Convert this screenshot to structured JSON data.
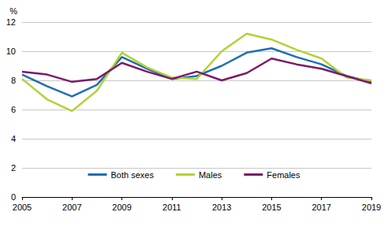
{
  "chart_data": {
    "type": "line",
    "y_label": "%",
    "x": [
      2005,
      2006,
      2007,
      2008,
      2009,
      2010,
      2011,
      2012,
      2013,
      2014,
      2015,
      2016,
      2017,
      2018,
      2019
    ],
    "series": [
      {
        "name": "Both sexes",
        "color": "#1f6eb3",
        "values": [
          8.4,
          7.6,
          6.9,
          7.7,
          9.6,
          8.8,
          8.1,
          8.3,
          9.0,
          9.9,
          10.2,
          9.6,
          9.1,
          8.3,
          7.9
        ]
      },
      {
        "name": "Males",
        "color": "#b0d335",
        "values": [
          8.1,
          6.7,
          5.9,
          7.3,
          9.9,
          8.9,
          8.2,
          8.1,
          10.0,
          11.2,
          10.8,
          10.1,
          9.5,
          8.2,
          8.0
        ]
      },
      {
        "name": "Females",
        "color": "#7d1a68",
        "values": [
          8.6,
          8.4,
          7.9,
          8.1,
          9.2,
          8.6,
          8.1,
          8.6,
          8.0,
          8.5,
          9.5,
          9.1,
          8.8,
          8.3,
          7.8
        ]
      }
    ],
    "xlim": [
      2005,
      2019
    ],
    "xticks": [
      2005,
      2007,
      2009,
      2011,
      2013,
      2015,
      2017,
      2019
    ],
    "ylim": [
      0,
      12
    ],
    "yticks": [
      0,
      2,
      4,
      6,
      8,
      10,
      12
    ],
    "grid": true,
    "legend": "bottom"
  }
}
